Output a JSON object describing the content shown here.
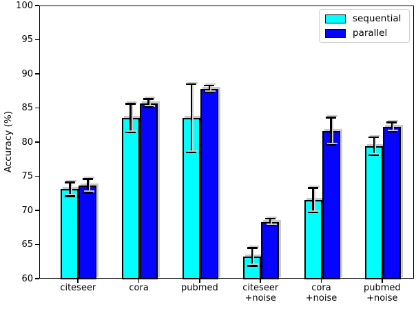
{
  "chart_data": {
    "type": "bar",
    "title": "",
    "ylabel": "Accuracy (%)",
    "xlabel": "",
    "ylim": [
      60,
      100
    ],
    "ytick_step": 5,
    "yticks": [
      60,
      65,
      70,
      75,
      80,
      85,
      90,
      95,
      100
    ],
    "categories": [
      "citeseer",
      "cora",
      "pubmed",
      "citeseer\n+noise",
      "cora\n+noise",
      "pubmed\n+noise"
    ],
    "series": [
      {
        "name": "sequential",
        "color": "#00ffff",
        "values": [
          73.2,
          83.6,
          83.6,
          63.3,
          71.6,
          79.5
        ],
        "errors": [
          1.0,
          2.1,
          5.0,
          1.3,
          1.8,
          1.3
        ]
      },
      {
        "name": "parallel",
        "color": "#0505ff",
        "values": [
          73.7,
          85.8,
          87.9,
          68.4,
          81.7,
          82.3
        ],
        "errors": [
          1.0,
          0.6,
          0.5,
          0.5,
          2.0,
          0.7
        ]
      }
    ],
    "legend_position": "upper right",
    "grid": false,
    "bar_edge_color": "#000000",
    "error_bar_color": "#000000",
    "background_color": "#ffffff"
  }
}
